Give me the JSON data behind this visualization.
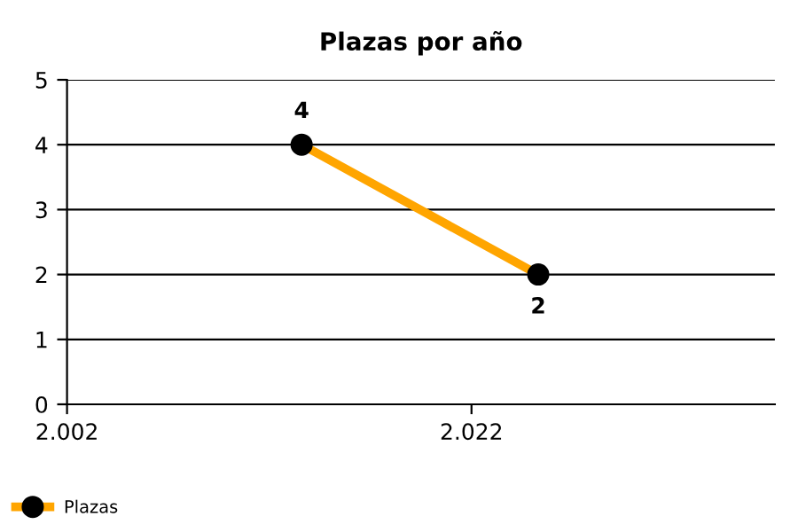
{
  "chart_data": {
    "type": "line",
    "title": "Plazas por año",
    "x": [
      2013.6,
      2025.3
    ],
    "series": [
      {
        "name": "Plazas",
        "color": "#ffa500",
        "values": [
          4,
          2
        ]
      }
    ],
    "xlim": [
      2002,
      2037
    ],
    "xticks": [
      {
        "value": 2002,
        "label": "2.002"
      },
      {
        "value": 2022,
        "label": "2.022"
      }
    ],
    "ylim": [
      0,
      5
    ],
    "yticks": [
      0,
      1,
      2,
      3,
      4,
      5
    ],
    "grid": "y",
    "legend": "bottom left",
    "marker": "circle",
    "data_labels": true
  }
}
